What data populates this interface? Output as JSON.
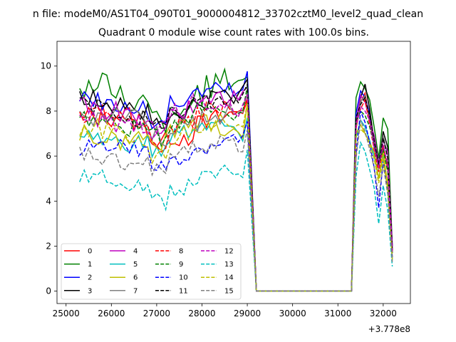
{
  "figure": {
    "suptitle": "n file: modeM0/AS1T04_090T01_9000004812_33702cztM0_level2_quad_clean"
  },
  "chart_data": {
    "type": "line",
    "title": "Quadrant 0 module wise count rates with 100.0s bins.",
    "xlabel": "",
    "ylabel": "",
    "x_offset_label": "+3.778e8",
    "xlim": [
      24800,
      32600
    ],
    "ylim": [
      -0.55,
      11.1
    ],
    "xticks": [
      25000,
      26000,
      27000,
      28000,
      29000,
      30000,
      31000,
      32000
    ],
    "xtick_labels": [
      "25000",
      "26000",
      "27000",
      "28000",
      "29000",
      "30000",
      "31000",
      "32000"
    ],
    "yticks": [
      0,
      2,
      4,
      6,
      8,
      10
    ],
    "ytick_labels": [
      "0",
      "2",
      "4",
      "6",
      "8",
      "10"
    ],
    "legend_position": "lower-left",
    "legend_columns": 4,
    "series": [
      {
        "name": "0",
        "color": "#ff0000",
        "dash": "solid",
        "base": 7.4,
        "amp": 0.75,
        "phase": 0.3,
        "tail": [
          7.2,
          8.4,
          8.8,
          7.6,
          6.6,
          5.6,
          6.5,
          5.4,
          2.0
        ]
      },
      {
        "name": "1",
        "color": "#008000",
        "dash": "solid",
        "base": 8.6,
        "amp": 0.85,
        "phase": 1.1,
        "tail": [
          8.6,
          9.3,
          9.0,
          8.5,
          7.3,
          5.9,
          7.7,
          7.2,
          2.0
        ]
      },
      {
        "name": "2",
        "color": "#0000ff",
        "dash": "solid",
        "base": 8.4,
        "amp": 0.55,
        "phase": 2.0,
        "tail": [
          7.9,
          8.9,
          8.6,
          7.9,
          6.4,
          5.7,
          6.8,
          6.0,
          2.0
        ]
      },
      {
        "name": "3",
        "color": "#000000",
        "dash": "solid",
        "base": 8.2,
        "amp": 0.6,
        "phase": 0.8,
        "tail": [
          7.6,
          8.6,
          9.2,
          8.1,
          6.6,
          5.5,
          7.1,
          6.4,
          1.8
        ]
      },
      {
        "name": "4",
        "color": "#bf00bf",
        "dash": "solid",
        "base": 8.0,
        "amp": 0.55,
        "phase": 1.7,
        "tail": [
          7.5,
          8.7,
          8.4,
          7.6,
          6.9,
          5.7,
          6.7,
          6.2,
          1.9
        ]
      },
      {
        "name": "5",
        "color": "#00bfbf",
        "dash": "solid",
        "base": 6.8,
        "amp": 0.5,
        "phase": 2.6,
        "tail": [
          6.8,
          7.6,
          7.3,
          6.7,
          6.0,
          5.0,
          6.0,
          4.6,
          1.4
        ]
      },
      {
        "name": "6",
        "color": "#bfbf00",
        "dash": "solid",
        "base": 7.0,
        "amp": 0.55,
        "phase": 3.1,
        "tail": [
          7.0,
          7.4,
          7.0,
          6.6,
          6.2,
          5.0,
          6.2,
          4.7,
          1.5
        ]
      },
      {
        "name": "7",
        "color": "#808080",
        "dash": "solid",
        "base": 7.6,
        "amp": 0.6,
        "phase": 0.1,
        "tail": [
          7.3,
          8.4,
          8.7,
          7.5,
          6.6,
          5.4,
          6.9,
          6.0,
          1.7
        ]
      },
      {
        "name": "8",
        "color": "#ff0000",
        "dash": "dashed",
        "base": 7.5,
        "amp": 0.6,
        "phase": 1.4,
        "tail": [
          7.4,
          8.1,
          8.5,
          7.4,
          6.3,
          5.3,
          6.4,
          5.5,
          1.8
        ]
      },
      {
        "name": "9",
        "color": "#008000",
        "dash": "dashed",
        "base": 7.6,
        "amp": 0.55,
        "phase": 2.3,
        "tail": [
          7.5,
          8.0,
          7.8,
          7.3,
          6.5,
          5.6,
          6.3,
          5.3,
          1.7
        ]
      },
      {
        "name": "10",
        "color": "#0000ff",
        "dash": "dashed",
        "base": 6.2,
        "amp": 0.5,
        "phase": 0.6,
        "tail": [
          6.1,
          8.0,
          7.5,
          6.6,
          5.5,
          3.7,
          5.8,
          4.4,
          1.5
        ]
      },
      {
        "name": "11",
        "color": "#000000",
        "dash": "dashed",
        "base": 8.0,
        "amp": 0.55,
        "phase": 1.9,
        "tail": [
          7.7,
          8.3,
          8.6,
          7.8,
          6.7,
          5.6,
          6.8,
          5.9,
          1.8
        ]
      },
      {
        "name": "12",
        "color": "#bf00bf",
        "dash": "dashed",
        "base": 7.7,
        "amp": 0.6,
        "phase": 2.9,
        "tail": [
          7.4,
          8.2,
          8.0,
          7.6,
          6.4,
          5.5,
          6.5,
          5.6,
          1.7
        ]
      },
      {
        "name": "13",
        "color": "#00bfbf",
        "dash": "dashed",
        "base": 4.8,
        "amp": 0.45,
        "phase": 0.9,
        "tail": [
          5.1,
          6.6,
          6.2,
          5.4,
          4.6,
          3.0,
          4.7,
          3.6,
          1.1
        ]
      },
      {
        "name": "14",
        "color": "#bfbf00",
        "dash": "dashed",
        "base": 7.0,
        "amp": 0.55,
        "phase": 1.6,
        "tail": [
          6.9,
          7.2,
          7.0,
          6.5,
          5.9,
          4.8,
          5.9,
          4.5,
          1.4
        ]
      },
      {
        "name": "15",
        "color": "#808080",
        "dash": "dashed",
        "base": 6.0,
        "amp": 0.5,
        "phase": 2.4,
        "tail": [
          5.9,
          7.6,
          7.1,
          6.3,
          5.5,
          4.2,
          5.6,
          4.3,
          1.3
        ]
      }
    ],
    "active_segment_1": {
      "x_start": 25300,
      "x_end": 28900,
      "step": 100
    },
    "drop": {
      "x_peak": 29000,
      "x_zero": 29200
    },
    "gap": {
      "x_start": 29200,
      "x_end": 31300,
      "value": 0
    },
    "active_segment_2": {
      "x_start": 31400,
      "x_end": 32300,
      "step": 100
    }
  }
}
